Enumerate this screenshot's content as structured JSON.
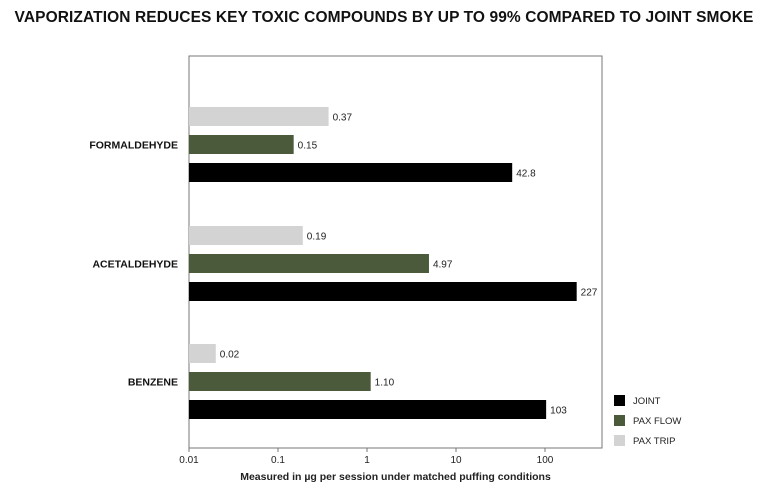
{
  "chart_data": {
    "type": "bar",
    "orientation": "horizontal",
    "title": "VAPORIZATION REDUCES KEY TOXIC COMPOUNDS BY UP TO 99% COMPARED TO JOINT SMOKE",
    "xlabel": "Measured in µg per session under matched puffing conditions",
    "ylabel": "",
    "x_scale": "log",
    "xlim": [
      0.01,
      300
    ],
    "x_ticks": [
      "0.01",
      "0.1",
      "1",
      "10",
      "100"
    ],
    "x_tick_values": [
      0.01,
      0.1,
      1,
      10,
      100
    ],
    "grid": false,
    "legend_position": "bottom-right",
    "categories": [
      "FORMALDEHYDE",
      "ACETALDEHYDE",
      "BENZENE"
    ],
    "series": [
      {
        "name": "PAX TRIP",
        "color": "#d3d3d3",
        "values": [
          0.37,
          0.19,
          0.02
        ],
        "labels": [
          "0.37",
          "0.19",
          "0.02"
        ]
      },
      {
        "name": "PAX FLOW",
        "color": "#4b5a3a",
        "values": [
          0.15,
          4.97,
          1.1
        ],
        "labels": [
          "0.15",
          "4.97",
          "1.10"
        ]
      },
      {
        "name": "JOINT",
        "color": "#000000",
        "values": [
          42.8,
          227,
          103
        ],
        "labels": [
          "42.8",
          "227",
          "103"
        ]
      }
    ],
    "legend_order": [
      "JOINT",
      "PAX FLOW",
      "PAX TRIP"
    ]
  }
}
